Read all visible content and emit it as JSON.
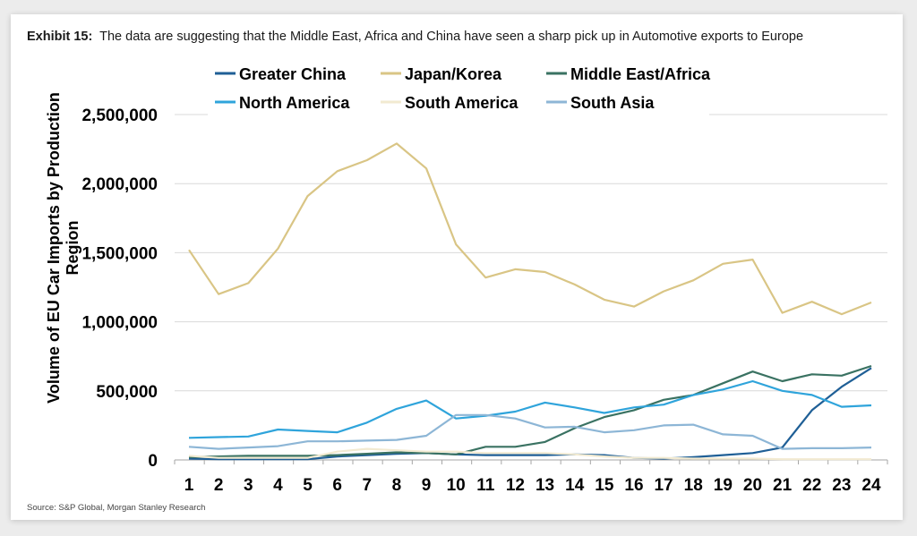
{
  "title": {
    "exhibit": "Exhibit 15:",
    "text": "The data are suggesting that the Middle East, Africa and China have seen a sharp pick up in Automotive exports to Europe"
  },
  "source": "Source: S&P Global, Morgan Stanley Research",
  "chart_data": {
    "type": "line",
    "title": "",
    "xlabel": "",
    "ylabel_lines": [
      "Volume of EU Car Imports by Production",
      "Region"
    ],
    "ylim": [
      0,
      2500000
    ],
    "yticks": [
      0,
      500000,
      1000000,
      1500000,
      2000000,
      2500000
    ],
    "ytick_labels": [
      "0",
      "500,000",
      "1,000,000",
      "1,500,000",
      "2,000,000",
      "2,500,000"
    ],
    "categories": [
      "1",
      "2",
      "3",
      "4",
      "5",
      "6",
      "7",
      "8",
      "9",
      "10",
      "11",
      "12",
      "13",
      "14",
      "15",
      "16",
      "17",
      "18",
      "19",
      "20",
      "21",
      "22",
      "23",
      "24"
    ],
    "grid": true,
    "legend_position": "top",
    "series": [
      {
        "name": "Greater China",
        "color": "#1f5f96",
        "values": [
          10000,
          5000,
          5000,
          5000,
          5000,
          25000,
          35000,
          45000,
          50000,
          40000,
          35000,
          35000,
          35000,
          40000,
          35000,
          15000,
          10000,
          20000,
          35000,
          50000,
          90000,
          360000,
          530000,
          665000
        ]
      },
      {
        "name": "Japan/Korea",
        "color": "#d9c585",
        "values": [
          1520000,
          1200000,
          1280000,
          1530000,
          1910000,
          2090000,
          2170000,
          2290000,
          2110000,
          1560000,
          1320000,
          1380000,
          1360000,
          1270000,
          1160000,
          1110000,
          1220000,
          1300000,
          1420000,
          1450000,
          1065000,
          1145000,
          1055000,
          1140000
        ]
      },
      {
        "name": "Middle East/Africa",
        "color": "#3a7262",
        "values": [
          20000,
          25000,
          30000,
          30000,
          30000,
          35000,
          45000,
          55000,
          50000,
          40000,
          95000,
          95000,
          130000,
          230000,
          310000,
          360000,
          435000,
          470000,
          555000,
          640000,
          570000,
          620000,
          610000,
          680000
        ]
      },
      {
        "name": "North America",
        "color": "#2fa4db",
        "values": [
          160000,
          165000,
          170000,
          220000,
          210000,
          200000,
          270000,
          370000,
          430000,
          300000,
          320000,
          350000,
          415000,
          380000,
          340000,
          380000,
          400000,
          470000,
          510000,
          570000,
          500000,
          470000,
          385000,
          395000
        ]
      },
      {
        "name": "South America",
        "color": "#f2ead1",
        "values": [
          30000,
          15000,
          15000,
          15000,
          15000,
          60000,
          80000,
          70000,
          60000,
          60000,
          50000,
          50000,
          50000,
          40000,
          25000,
          15000,
          15000,
          10000,
          10000,
          10000,
          5000,
          5000,
          5000,
          5000
        ]
      },
      {
        "name": "South Asia",
        "color": "#8db6d6",
        "values": [
          95000,
          80000,
          90000,
          100000,
          135000,
          135000,
          140000,
          145000,
          175000,
          325000,
          325000,
          300000,
          235000,
          240000,
          200000,
          215000,
          250000,
          255000,
          185000,
          175000,
          80000,
          85000,
          85000,
          90000
        ]
      }
    ]
  }
}
